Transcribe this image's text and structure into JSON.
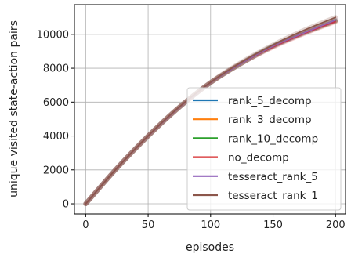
{
  "chart_data": {
    "type": "line",
    "xlabel": "episodes",
    "ylabel": "unique visited state-action pairs",
    "xlim": [
      -9,
      208
    ],
    "ylim": [
      -600,
      11750
    ],
    "xticks": [
      0,
      50,
      100,
      150,
      200
    ],
    "yticks": [
      0,
      2000,
      4000,
      6000,
      8000,
      10000
    ],
    "grid": true,
    "legend_position": "lower-right",
    "x": [
      0,
      25,
      50,
      75,
      100,
      125,
      150,
      175,
      200
    ],
    "series": [
      {
        "name": "rank_5_decomp",
        "color": "#1f77b4",
        "values": [
          0,
          2100,
          4000,
          5700,
          7150,
          8300,
          9300,
          10100,
          10800
        ]
      },
      {
        "name": "rank_3_decomp",
        "color": "#ff7f0e",
        "values": [
          0,
          2100,
          4000,
          5700,
          7150,
          8300,
          9300,
          10100,
          10800
        ]
      },
      {
        "name": "rank_10_decomp",
        "color": "#2ca02c",
        "values": [
          0,
          2100,
          4000,
          5700,
          7150,
          8300,
          9300,
          10100,
          10800
        ]
      },
      {
        "name": "no_decomp",
        "color": "#d62728",
        "values": [
          0,
          2100,
          4000,
          5700,
          7150,
          8300,
          9250,
          10050,
          10750
        ]
      },
      {
        "name": "tesseract_rank_5",
        "color": "#9467bd",
        "values": [
          0,
          2100,
          4000,
          5700,
          7150,
          8300,
          9300,
          10100,
          10850
        ]
      },
      {
        "name": "tesseract_rank_1",
        "color": "#8c564b",
        "values": [
          0,
          2100,
          4010,
          5720,
          7170,
          8370,
          9380,
          10250,
          11000
        ]
      }
    ]
  }
}
